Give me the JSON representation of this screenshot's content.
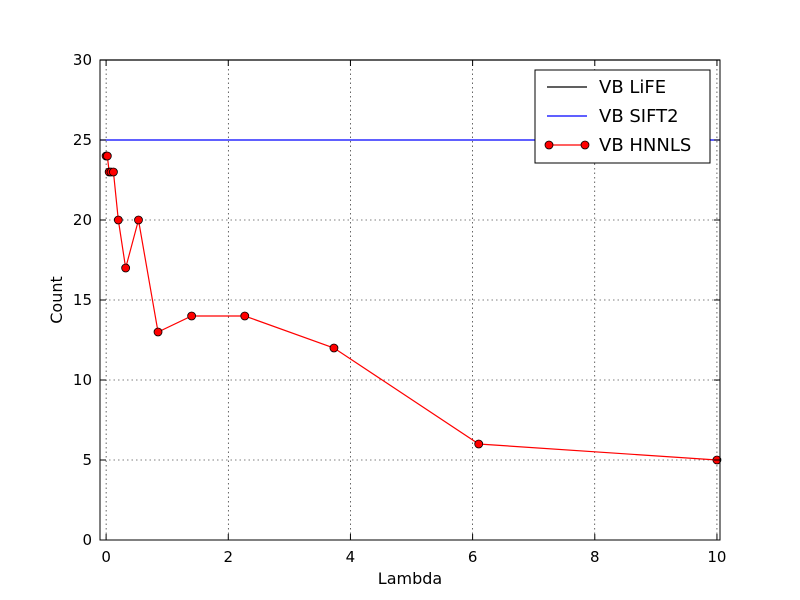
{
  "chart_data": {
    "type": "line",
    "title": "",
    "xlabel": "Lambda",
    "ylabel": "Count",
    "xlim": [
      -0.1,
      10.05
    ],
    "ylim": [
      0,
      30
    ],
    "xticks": [
      0,
      2,
      4,
      6,
      8,
      10
    ],
    "yticks": [
      0,
      5,
      10,
      15,
      20,
      25,
      30
    ],
    "grid": true,
    "legend_position": "top-right",
    "series": [
      {
        "name": "VB LiFE",
        "color": "#000000",
        "style": "line",
        "x": [
          -0.1,
          10.05
        ],
        "y": [
          30,
          30
        ]
      },
      {
        "name": "VB SIFT2",
        "color": "#0000ff",
        "style": "line",
        "x": [
          -0.1,
          10.05
        ],
        "y": [
          25,
          25
        ]
      },
      {
        "name": "VB HNNLS",
        "color": "#ff0000",
        "style": "line-marker",
        "x": [
          0.0,
          0.02,
          0.05,
          0.08,
          0.12,
          0.2,
          0.32,
          0.53,
          0.85,
          1.4,
          2.27,
          3.73,
          6.1,
          10.0
        ],
        "y": [
          24,
          24,
          23,
          23,
          23,
          20,
          17,
          20,
          13,
          14,
          14,
          12,
          6,
          5
        ]
      }
    ]
  }
}
